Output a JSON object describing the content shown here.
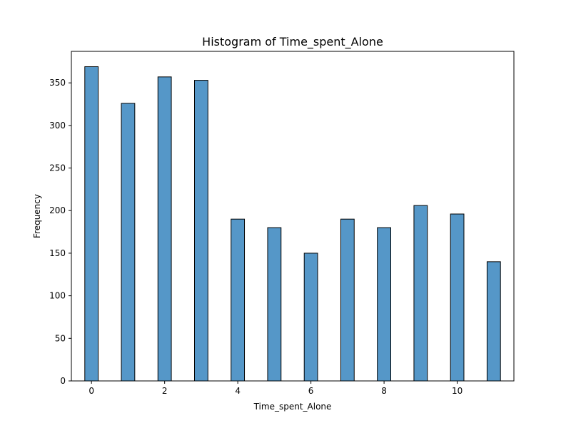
{
  "chart_data": {
    "type": "bar",
    "title": "Histogram of Time_spent_Alone",
    "xlabel": "Time_spent_Alone",
    "ylabel": "Frequency",
    "x": [
      0,
      1,
      2,
      3,
      4,
      5,
      6,
      7,
      8,
      9,
      10,
      11
    ],
    "values": [
      369,
      326,
      357,
      353,
      190,
      180,
      150,
      190,
      180,
      206,
      196,
      140
    ],
    "xlim": [
      -0.55,
      11.55
    ],
    "ylim": [
      0,
      387
    ],
    "xticks": [
      0,
      2,
      4,
      6,
      8,
      10
    ],
    "yticks": [
      0,
      50,
      100,
      150,
      200,
      250,
      300,
      350
    ],
    "bar_color": "#5597c8",
    "edge_color": "#000000",
    "grid": false
  }
}
